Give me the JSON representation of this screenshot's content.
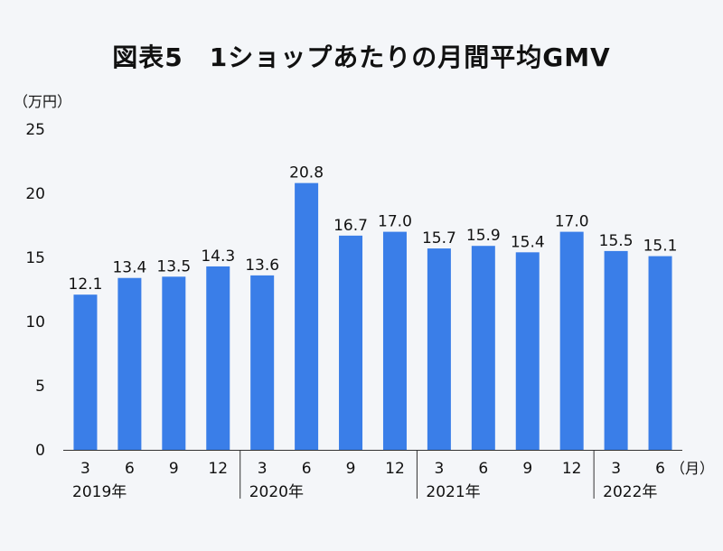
{
  "chart_data": {
    "type": "bar",
    "title": "図表5　1ショップあたりの月間平均GMV",
    "ylabel": "（万円）",
    "x_unit_label": "（月）",
    "ylim": [
      0,
      25
    ],
    "yticks": [
      0,
      5,
      10,
      15,
      20,
      25
    ],
    "categories": [
      "3",
      "6",
      "9",
      "12",
      "3",
      "6",
      "9",
      "12",
      "3",
      "6",
      "9",
      "12",
      "3",
      "6"
    ],
    "values": [
      12.1,
      13.4,
      13.5,
      14.3,
      13.6,
      20.8,
      16.7,
      17.0,
      15.7,
      15.9,
      15.4,
      17.0,
      15.5,
      15.1
    ],
    "value_labels": [
      "12.1",
      "13.4",
      "13.5",
      "14.3",
      "13.6",
      "20.8",
      "16.7",
      "17.0",
      "15.7",
      "15.9",
      "15.4",
      "17.0",
      "15.5",
      "15.1"
    ],
    "groups": [
      {
        "label": "2019年",
        "count": 4
      },
      {
        "label": "2020年",
        "count": 4
      },
      {
        "label": "2021年",
        "count": 4
      },
      {
        "label": "2022年",
        "count": 2
      }
    ],
    "bar_color": "#3a7ee8",
    "grid": false,
    "legend": "none"
  }
}
